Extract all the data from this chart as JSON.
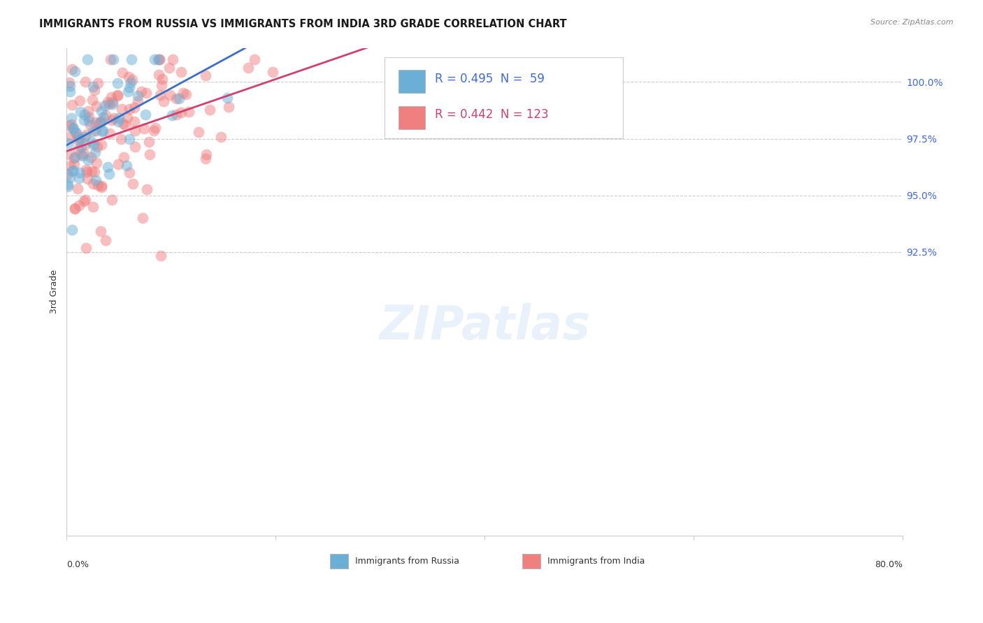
{
  "title": "IMMIGRANTS FROM RUSSIA VS IMMIGRANTS FROM INDIA 3RD GRADE CORRELATION CHART",
  "source": "Source: ZipAtlas.com",
  "ylabel": "3rd Grade",
  "xmin": 0.0,
  "xmax": 80.0,
  "ymin": 80.0,
  "ymax": 101.5,
  "r_russia": 0.495,
  "n_russia": 59,
  "r_india": 0.442,
  "n_india": 123,
  "color_russia": "#6baed6",
  "color_india": "#f08080",
  "trendline_color_russia": "#3a6fc4",
  "trendline_color_india": "#d04070",
  "grid_color": "#cccccc",
  "background_color": "#ffffff",
  "ytick_positions": [
    92.5,
    95.0,
    97.5,
    100.0
  ],
  "ytick_labels": [
    "92.5%",
    "95.0%",
    "97.5%",
    "100.0%"
  ],
  "legend_russia_text": "R = 0.495  N =  59",
  "legend_india_text": "R = 0.442  N = 123",
  "bottom_legend_russia": "Immigrants from Russia",
  "bottom_legend_india": "Immigrants from India",
  "watermark": "ZIPatlas"
}
